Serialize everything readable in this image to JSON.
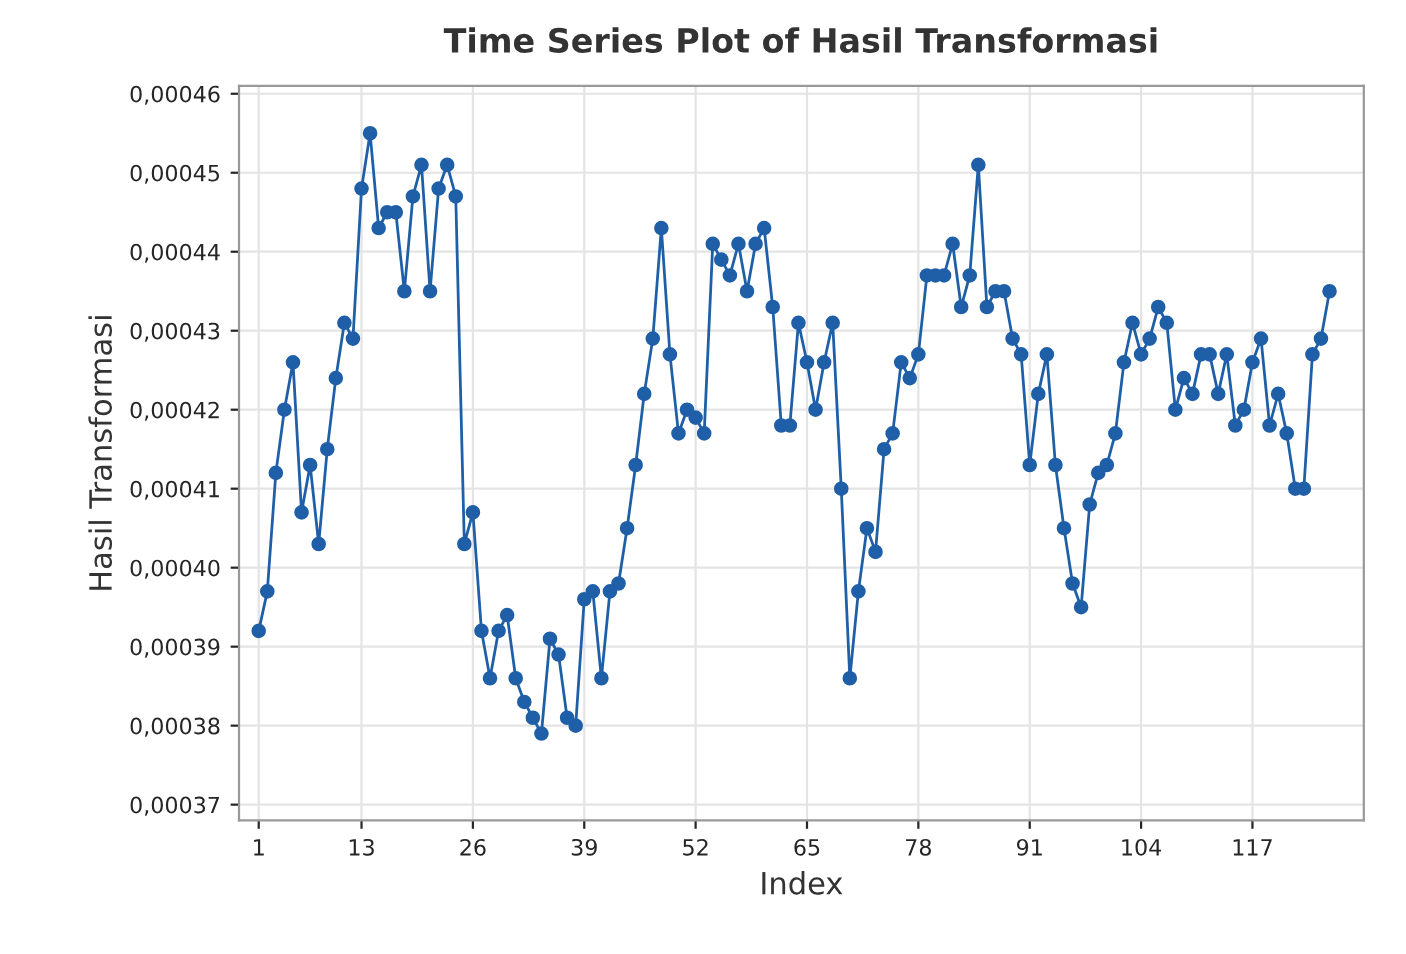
{
  "chart_data": {
    "type": "line",
    "title": "Time Series Plot of Hasil Transformasi",
    "xlabel": "Index",
    "ylabel": "Hasil Transformasi",
    "x": [
      1,
      2,
      3,
      4,
      5,
      6,
      7,
      8,
      9,
      10,
      11,
      12,
      13,
      14,
      15,
      16,
      17,
      18,
      19,
      20,
      21,
      22,
      23,
      24,
      25,
      26,
      27,
      28,
      29,
      30,
      31,
      32,
      33,
      34,
      35,
      36,
      37,
      38,
      39,
      40,
      41,
      42,
      43,
      44,
      45,
      46,
      47,
      48,
      49,
      50,
      51,
      52,
      53,
      54,
      55,
      56,
      57,
      58,
      59,
      60,
      61,
      62,
      63,
      64,
      65,
      66,
      67,
      68,
      69,
      70,
      71,
      72,
      73,
      74,
      75,
      76,
      77,
      78,
      79,
      80,
      81,
      82,
      83,
      84,
      85,
      86,
      87,
      88,
      89,
      90,
      91,
      92,
      93,
      94,
      95,
      96,
      97,
      98,
      99,
      100,
      101,
      102,
      103,
      104,
      105,
      106,
      107,
      108,
      109,
      110,
      111,
      112,
      113,
      114,
      115,
      116,
      117,
      118,
      119,
      120,
      121,
      122,
      123,
      124,
      125,
      126
    ],
    "series": [
      {
        "color": "#1f5fa8",
        "values": [
          0.000392,
          0.000397,
          0.000412,
          0.00042,
          0.000426,
          0.000407,
          0.000413,
          0.000403,
          0.000415,
          0.000424,
          0.000431,
          0.000429,
          0.000448,
          0.000455,
          0.000443,
          0.000445,
          0.000445,
          0.000435,
          0.000447,
          0.000451,
          0.000435,
          0.000448,
          0.000451,
          0.000447,
          0.000403,
          0.000407,
          0.000392,
          0.000386,
          0.000392,
          0.000394,
          0.000386,
          0.000383,
          0.000381,
          0.000379,
          0.000391,
          0.000389,
          0.000381,
          0.00038,
          0.000396,
          0.000397,
          0.000386,
          0.000397,
          0.000398,
          0.000405,
          0.000413,
          0.000422,
          0.000429,
          0.000443,
          0.000427,
          0.000417,
          0.00042,
          0.000419,
          0.000417,
          0.000441,
          0.000439,
          0.000437,
          0.000441,
          0.000435,
          0.000441,
          0.000443,
          0.000433,
          0.000418,
          0.000418,
          0.000431,
          0.000426,
          0.00042,
          0.000426,
          0.000431,
          0.00041,
          0.000386,
          0.000397,
          0.000405,
          0.000402,
          0.000415,
          0.000417,
          0.000426,
          0.000424,
          0.000427,
          0.000437,
          0.000437,
          0.000437,
          0.000441,
          0.000433,
          0.000437,
          0.000451,
          0.000433,
          0.000435,
          0.000435,
          0.000429,
          0.000427,
          0.000413,
          0.000422,
          0.000427,
          0.000413,
          0.000405,
          0.000398,
          0.000395,
          0.000408,
          0.000412,
          0.000413,
          0.000417,
          0.000426,
          0.000431,
          0.000427,
          0.000429,
          0.000433,
          0.000431,
          0.00042,
          0.000424,
          0.000422,
          0.000427,
          0.000427,
          0.000422,
          0.000427,
          0.000418,
          0.00042,
          0.000426,
          0.000429,
          0.000418,
          0.000422,
          0.000417,
          0.00041,
          0.00041,
          0.000427,
          0.000429,
          0.000435
        ]
      }
    ],
    "xlim": [
      -1.3,
      130
    ],
    "xticks": [
      1,
      13,
      26,
      39,
      52,
      65,
      78,
      91,
      104,
      117
    ],
    "ylim": [
      0.000368,
      0.000461
    ],
    "yticks": [
      {
        "value": 0.00037,
        "label": "0,00037"
      },
      {
        "value": 0.00038,
        "label": "0,00038"
      },
      {
        "value": 0.00039,
        "label": "0,00039"
      },
      {
        "value": 0.0004,
        "label": "0,00040"
      },
      {
        "value": 0.00041,
        "label": "0,00041"
      },
      {
        "value": 0.00042,
        "label": "0,00042"
      },
      {
        "value": 0.00043,
        "label": "0,00043"
      },
      {
        "value": 0.00044,
        "label": "0,00044"
      },
      {
        "value": 0.00045,
        "label": "0,00045"
      },
      {
        "value": 0.00046,
        "label": "0,00046"
      }
    ],
    "grid": true,
    "marker": "circle",
    "line_style": "solid"
  }
}
